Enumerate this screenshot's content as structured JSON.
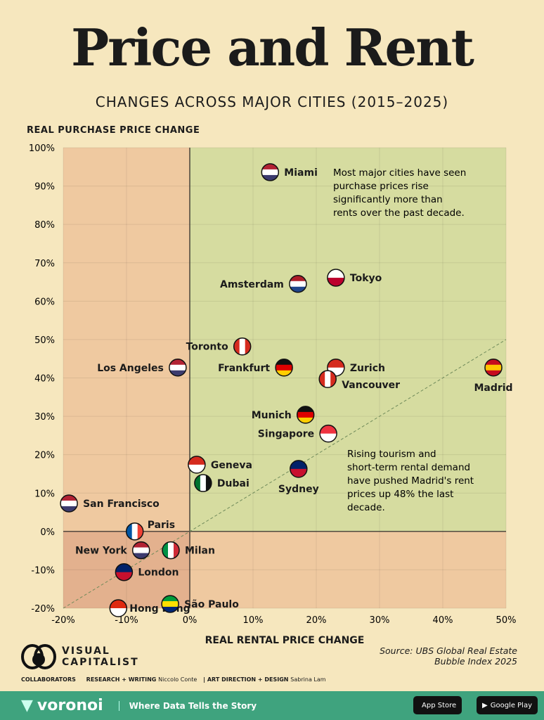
{
  "title": "Price and Rent",
  "subtitle": "CHANGES ACROSS MAJOR CITIES (2015–2025)",
  "chart_data": {
    "type": "scatter",
    "title": "Price and Rent",
    "subtitle": "CHANGES ACROSS MAJOR CITIES (2015–2025)",
    "xlabel": "REAL RENTAL PRICE CHANGE",
    "ylabel": "REAL PURCHASE PRICE CHANGE",
    "xlim": [
      -20,
      50
    ],
    "ylim": [
      -20,
      100
    ],
    "x_ticks": [
      "-20%",
      "-10%",
      "0%",
      "10%",
      "20%",
      "30%",
      "40%",
      "50%"
    ],
    "y_ticks": [
      "100%",
      "90%",
      "80%",
      "70%",
      "60%",
      "50%",
      "40%",
      "30%",
      "20%",
      "10%",
      "0%",
      "-10%",
      "-20%"
    ],
    "grid": true,
    "reference_line": "y = x (dashed)",
    "quadrant_colors": {
      "upper_right": "#d6dca0",
      "upper_left": "#efc9a0",
      "lower_right": "#efc9a0",
      "lower_left": "#e3b18e"
    },
    "points": [
      {
        "label": "Miami",
        "x": 12.7,
        "y": 93.6,
        "flag": "us"
      },
      {
        "label": "Tokyo",
        "x": 23.1,
        "y": 66.1,
        "flag": "jp"
      },
      {
        "label": "Amsterdam",
        "x": 17.1,
        "y": 64.5,
        "flag": "nl"
      },
      {
        "label": "Toronto",
        "x": 8.3,
        "y": 48.2,
        "flag": "ca"
      },
      {
        "label": "Los Angeles",
        "x": -1.9,
        "y": 42.7,
        "flag": "us"
      },
      {
        "label": "Frankfurt",
        "x": 14.9,
        "y": 42.7,
        "flag": "de"
      },
      {
        "label": "Zurich",
        "x": 23.1,
        "y": 42.7,
        "flag": "ch"
      },
      {
        "label": "Vancouver",
        "x": 21.8,
        "y": 39.7,
        "flag": "ca"
      },
      {
        "label": "Madrid",
        "x": 48,
        "y": 42.7,
        "flag": "es"
      },
      {
        "label": "Munich",
        "x": 18.3,
        "y": 30.4,
        "flag": "de"
      },
      {
        "label": "Singapore",
        "x": 21.9,
        "y": 25.5,
        "flag": "sg"
      },
      {
        "label": "Geneva",
        "x": 1.1,
        "y": 17.4,
        "flag": "ch"
      },
      {
        "label": "Dubai",
        "x": 2.1,
        "y": 12.6,
        "flag": "ae"
      },
      {
        "label": "Sydney",
        "x": 17.2,
        "y": 16.3,
        "flag": "au"
      },
      {
        "label": "San Francisco",
        "x": -19.1,
        "y": 7.3,
        "flag": "us"
      },
      {
        "label": "Paris",
        "x": -8.7,
        "y": 0,
        "flag": "fr"
      },
      {
        "label": "New York",
        "x": -7.7,
        "y": -4.9,
        "flag": "us"
      },
      {
        "label": "Milan",
        "x": -3,
        "y": -4.9,
        "flag": "it"
      },
      {
        "label": "London",
        "x": -10.4,
        "y": -10.6,
        "flag": "gb"
      },
      {
        "label": "Hong Kong",
        "x": -11.3,
        "y": -20,
        "flag": "hk"
      },
      {
        "label": "São Paulo",
        "x": -3.1,
        "y": -18.9,
        "flag": "br"
      }
    ],
    "annotations": [
      "Most major cities have seen purchase prices rise significantly more than rents over the past decade.",
      "Rising tourism and short-term rental demand have pushed Madrid's rent prices up 48% the last decade."
    ]
  },
  "source": "Source: UBS Global Real Estate Bubble Index 2025",
  "logo": "VISUAL CAPITALIST",
  "collaborators": {
    "label": "COLLABORATORS",
    "research_role": "RESEARCH + WRITING",
    "research_name": "Niccolo Conte",
    "design_role": "ART DIRECTION + DESIGN",
    "design_name": "Sabrina Lam"
  },
  "footer": {
    "brand": "voronoi",
    "tagline": "Where Data Tells the Story",
    "app_store": "App Store",
    "google_play": "Google Play"
  }
}
